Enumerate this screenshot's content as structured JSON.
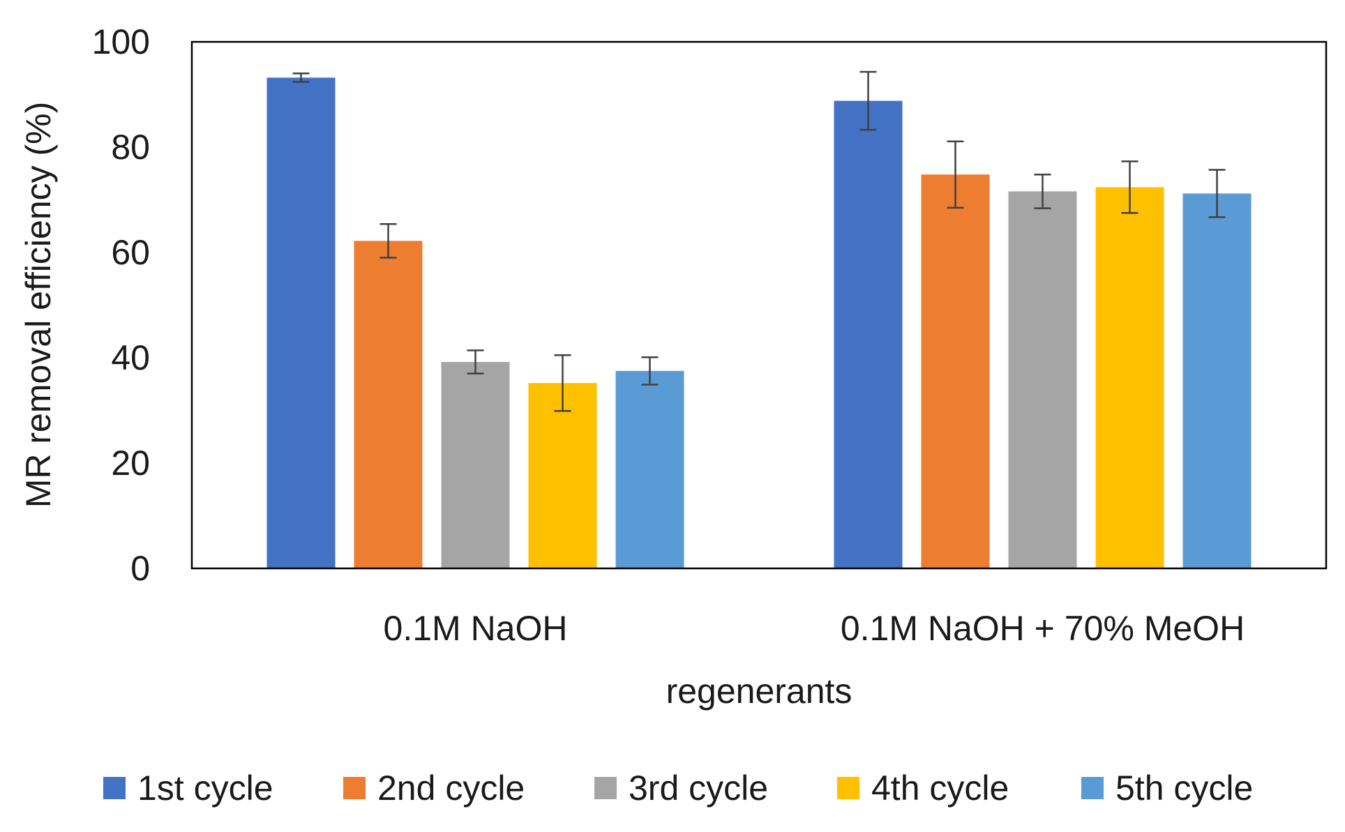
{
  "chart_data": {
    "type": "bar",
    "title": "",
    "xlabel": "regenerants",
    "ylabel": "MR removal efficiency (%)",
    "ylim": [
      0,
      100
    ],
    "yticks": [
      0,
      20,
      40,
      60,
      80,
      100
    ],
    "grid": false,
    "legend_position": "bottom",
    "categories": [
      "0.1M NaOH",
      "0.1M NaOH + 70% MeOH"
    ],
    "series": [
      {
        "name": "1st cycle",
        "color": "#4472C4",
        "values": [
          93.2,
          88.8
        ],
        "errors": [
          0.8,
          5.5
        ]
      },
      {
        "name": "2nd cycle",
        "color": "#ED7D31",
        "values": [
          62.2,
          74.8
        ],
        "errors": [
          3.2,
          6.3
        ]
      },
      {
        "name": "3rd cycle",
        "color": "#A5A5A5",
        "values": [
          39.2,
          71.6
        ],
        "errors": [
          2.2,
          3.2
        ]
      },
      {
        "name": "4th cycle",
        "color": "#FFC000",
        "values": [
          35.2,
          72.4
        ],
        "errors": [
          5.3,
          4.9
        ]
      },
      {
        "name": "5th cycle",
        "color": "#5B9BD5",
        "values": [
          37.5,
          71.2
        ],
        "errors": [
          2.6,
          4.5
        ]
      }
    ]
  }
}
